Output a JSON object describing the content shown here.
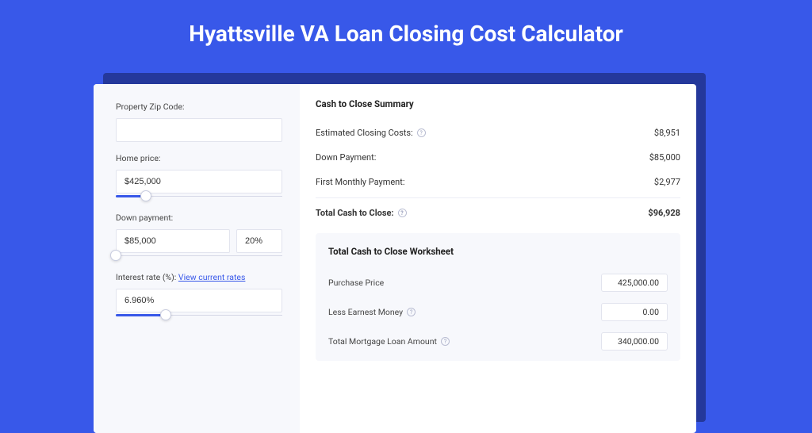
{
  "page": {
    "title": "Hyattsville VA Loan Closing Cost Calculator",
    "bg_color": "#3858e9",
    "shadow_color": "#24389b",
    "card_bg": "#ffffff",
    "panel_bg": "#f7f8fc",
    "input_border": "#e2e4ee",
    "link_color": "#3858e9"
  },
  "form": {
    "zip_label": "Property Zip Code:",
    "zip_value": "",
    "home_price_label": "Home price:",
    "home_price_value": "$425,000",
    "home_price_slider": {
      "fill_pct": 18,
      "thumb_pct": 18
    },
    "down_payment_label": "Down payment:",
    "down_payment_value": "$85,000",
    "down_payment_pct": "20%",
    "down_payment_slider": {
      "fill_pct": 0,
      "thumb_pct": 0
    },
    "interest_label_prefix": "Interest rate (%): ",
    "interest_link": "View current rates",
    "interest_value": "6.960%",
    "interest_slider": {
      "fill_pct": 30,
      "thumb_pct": 30
    }
  },
  "summary": {
    "title": "Cash to Close Summary",
    "rows": [
      {
        "label": "Estimated Closing Costs:",
        "help": true,
        "value": "$8,951"
      },
      {
        "label": "Down Payment:",
        "help": false,
        "value": "$85,000"
      },
      {
        "label": "First Monthly Payment:",
        "help": false,
        "value": "$2,977"
      }
    ],
    "total": {
      "label": "Total Cash to Close:",
      "help": true,
      "value": "$96,928"
    }
  },
  "worksheet": {
    "title": "Total Cash to Close Worksheet",
    "rows": [
      {
        "label": "Purchase Price",
        "help": false,
        "value": "425,000.00"
      },
      {
        "label": "Less Earnest Money",
        "help": true,
        "value": "0.00"
      },
      {
        "label": "Total Mortgage Loan Amount",
        "help": true,
        "value": "340,000.00"
      }
    ]
  }
}
